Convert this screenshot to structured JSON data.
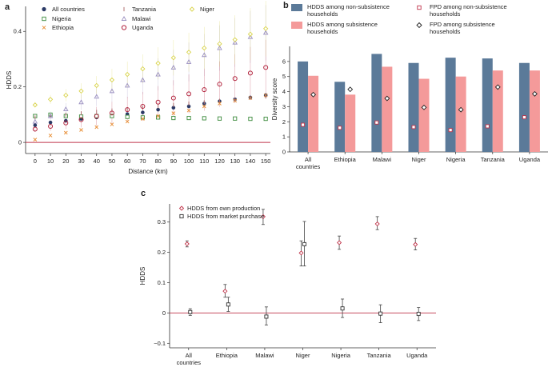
{
  "colors": {
    "all": "#2b3a66",
    "nigeria": "#3b8a3b",
    "ethiopia": "#e8923c",
    "tanzania": "#b07070",
    "malawi": "#9a8fc0",
    "niger": "#d8d34a",
    "uganda": "#b0203a",
    "zero": "#c0344a",
    "bar_nonsub": "#5b7a99",
    "bar_sub": "#f49a9a",
    "err": "#444444"
  },
  "chart_data": [
    {
      "panel": "a",
      "type": "scatter",
      "xlabel": "Distance (km)",
      "ylabel": "HDDS",
      "x": [
        0,
        10,
        20,
        30,
        40,
        50,
        60,
        70,
        80,
        90,
        100,
        110,
        120,
        130,
        140,
        150
      ],
      "xlim": [
        -2,
        152
      ],
      "ylim": [
        -0.04,
        0.49
      ],
      "yticks": [
        0,
        0.2,
        0.4
      ],
      "ytick_labels": [
        "0",
        "0.2",
        "0.4"
      ],
      "series": [
        {
          "name": "All countries",
          "key": "all",
          "marker": "dot",
          "values": [
            0.062,
            0.072,
            0.078,
            0.085,
            0.09,
            0.095,
            0.102,
            0.108,
            0.118,
            0.125,
            0.13,
            0.14,
            0.148,
            0.155,
            0.162,
            0.17
          ]
        },
        {
          "name": "Nigeria",
          "key": "nigeria",
          "marker": "square",
          "values": [
            0.095,
            0.1,
            0.095,
            0.093,
            0.095,
            0.095,
            0.092,
            0.09,
            0.09,
            0.088,
            0.088,
            0.087,
            0.086,
            0.086,
            0.085,
            0.085
          ]
        },
        {
          "name": "Ethiopia",
          "key": "ethiopia",
          "marker": "x",
          "values": [
            0.01,
            0.025,
            0.035,
            0.045,
            0.055,
            0.065,
            0.075,
            0.085,
            0.095,
            0.105,
            0.115,
            0.13,
            0.14,
            0.15,
            0.16,
            0.17
          ]
        },
        {
          "name": "Tanzania",
          "key": "tanzania",
          "marker": "plus",
          "values": [
            0.09,
            0.095,
            0.1,
            0.105,
            0.11,
            0.115,
            0.12,
            0.125,
            0.13,
            0.135,
            0.14,
            0.145,
            0.15,
            0.155,
            0.16,
            0.165
          ]
        },
        {
          "name": "Malawi",
          "key": "malawi",
          "marker": "triangle",
          "values": [
            0.075,
            0.095,
            0.12,
            0.145,
            0.165,
            0.185,
            0.205,
            0.225,
            0.245,
            0.27,
            0.29,
            0.315,
            0.34,
            0.36,
            0.38,
            0.395
          ]
        },
        {
          "name": "Uganda",
          "key": "uganda",
          "marker": "circle",
          "values": [
            0.048,
            0.058,
            0.07,
            0.082,
            0.094,
            0.106,
            0.118,
            0.13,
            0.145,
            0.16,
            0.175,
            0.19,
            0.21,
            0.23,
            0.25,
            0.27
          ]
        },
        {
          "name": "Niger",
          "key": "niger",
          "marker": "diamond",
          "values": [
            0.135,
            0.155,
            0.17,
            0.185,
            0.205,
            0.225,
            0.245,
            0.265,
            0.285,
            0.305,
            0.325,
            0.34,
            0.355,
            0.37,
            0.39,
            0.41
          ]
        }
      ]
    },
    {
      "panel": "b",
      "type": "bar",
      "ylabel": "Diversity score",
      "categories": [
        "All countries",
        "Ethiopia",
        "Malawi",
        "Niger",
        "Nigeria",
        "Tanzania",
        "Uganda"
      ],
      "category_lines": [
        [
          "All",
          "countries"
        ],
        [
          "Ethiopia"
        ],
        [
          "Malawi"
        ],
        [
          "Niger"
        ],
        [
          "Nigeria"
        ],
        [
          "Tanzania"
        ],
        [
          "Uganda"
        ]
      ],
      "ylim": [
        0,
        7
      ],
      "yticks": [
        0,
        1,
        2,
        3,
        4,
        5,
        6
      ],
      "series": [
        {
          "name": "HDDS among non-subsistence households",
          "kind": "bar",
          "key": "bar_nonsub",
          "values": [
            6.0,
            4.65,
            6.5,
            5.9,
            6.25,
            6.2,
            5.9
          ]
        },
        {
          "name": "HDDS among subsistence households",
          "kind": "bar",
          "key": "bar_sub",
          "values": [
            5.05,
            3.8,
            5.65,
            4.85,
            5.0,
            5.4,
            5.4
          ]
        },
        {
          "name": "FPD among non-subsistence households",
          "kind": "square",
          "values": [
            1.8,
            1.6,
            1.95,
            1.65,
            1.45,
            1.7,
            2.3
          ]
        },
        {
          "name": "FPD among subsistence households",
          "kind": "diamond",
          "values": [
            3.8,
            4.15,
            3.55,
            2.95,
            2.8,
            4.3,
            3.85
          ]
        }
      ],
      "legend": [
        {
          "label": "HDDS among non-subsistence households",
          "lines": [
            "HDDS among non-subsistence",
            "households"
          ],
          "kind": "bar_nonsub"
        },
        {
          "label": "FPD among non-subsistence households",
          "lines": [
            "FPD among non-subsistence",
            "households"
          ],
          "kind": "square"
        },
        {
          "label": "HDDS among subsistence households",
          "lines": [
            "HDDS among subsistence",
            "households"
          ],
          "kind": "bar_sub"
        },
        {
          "label": "FPD among subsistence households",
          "lines": [
            "FPD among subsistence",
            "households"
          ],
          "kind": "diamond"
        }
      ]
    },
    {
      "panel": "c",
      "type": "scatter",
      "ylabel": "HDDS",
      "categories": [
        "All countries",
        "Ethiopia",
        "Malawi",
        "Niger",
        "Nigeria",
        "Tanzania",
        "Uganda"
      ],
      "category_lines": [
        [
          "All",
          "countries"
        ],
        [
          "Ethiopia"
        ],
        [
          "Malawi"
        ],
        [
          "Niger"
        ],
        [
          "Nigeria"
        ],
        [
          "Tanzania"
        ],
        [
          "Uganda"
        ]
      ],
      "ylim": [
        -0.115,
        0.36
      ],
      "yticks": [
        -0.1,
        0,
        0.1,
        0.2,
        0.3
      ],
      "ytick_labels": [
        "−0.1",
        "0",
        "0.1",
        "0.2",
        "0.3"
      ],
      "series": [
        {
          "name": "HDDS from own production",
          "marker": "diamond",
          "values": [
            0.228,
            0.072,
            0.318,
            0.198,
            0.232,
            0.294,
            0.226
          ],
          "err_low": [
            0.218,
            0.052,
            0.292,
            0.155,
            0.21,
            0.275,
            0.208
          ],
          "err_high": [
            0.238,
            0.094,
            0.342,
            0.238,
            0.254,
            0.318,
            0.246
          ]
        },
        {
          "name": "HDDS from market purchase",
          "marker": "square",
          "values": [
            0.003,
            0.028,
            -0.012,
            0.227,
            0.015,
            -0.002,
            -0.003
          ],
          "err_low": [
            -0.008,
            0.005,
            -0.04,
            0.155,
            -0.015,
            -0.032,
            -0.025
          ],
          "err_high": [
            0.014,
            0.052,
            0.02,
            0.302,
            0.046,
            0.027,
            0.018
          ]
        }
      ]
    }
  ]
}
